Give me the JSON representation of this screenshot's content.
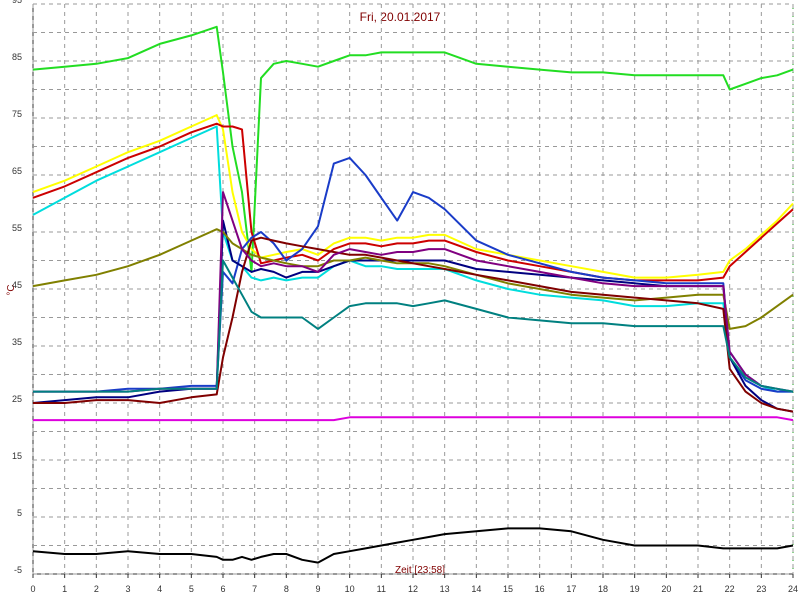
{
  "chart_data": {
    "type": "line",
    "title": "Fri, 20.01.2017",
    "x_label": "Zeit [23:58]",
    "y_label": "°C",
    "xlim": [
      0,
      24
    ],
    "ylim": [
      -5,
      95
    ],
    "xticks": [
      0,
      1,
      2,
      3,
      4,
      5,
      6,
      7,
      8,
      9,
      10,
      11,
      12,
      13,
      14,
      15,
      16,
      17,
      18,
      19,
      20,
      21,
      22,
      23,
      24
    ],
    "yticks": [
      -5,
      5,
      15,
      25,
      35,
      45,
      55,
      65,
      75,
      85,
      95
    ],
    "grid": true,
    "x": [
      0,
      1,
      2,
      3,
      4,
      5,
      5.8,
      6,
      6.3,
      6.6,
      6.9,
      7.2,
      7.6,
      8,
      8.5,
      9,
      9.5,
      10,
      10.5,
      11,
      11.5,
      12,
      12.5,
      13,
      14,
      15,
      16,
      17,
      18,
      19,
      20,
      21,
      21.8,
      22,
      22.5,
      23,
      23.5,
      24
    ],
    "series": [
      {
        "color": "#22dd22",
        "values": [
          83.5,
          84,
          84.5,
          85.5,
          88,
          89.5,
          91,
          83,
          70,
          62,
          48,
          82,
          84.5,
          85,
          84.5,
          84,
          85,
          86,
          86,
          86.5,
          86.5,
          86.5,
          86.5,
          86.5,
          84.5,
          84,
          83.5,
          83,
          83,
          82.5,
          82.5,
          82.5,
          82.5,
          80,
          81,
          82,
          82.5,
          83.5
        ]
      },
      {
        "color": "#ffff00",
        "values": [
          62,
          64,
          66.5,
          69,
          71,
          73.5,
          75.5,
          73,
          62,
          55,
          52,
          50.5,
          51,
          51.5,
          52,
          51,
          53,
          54,
          54,
          53.5,
          54,
          54,
          54.5,
          54.5,
          52,
          51,
          50,
          49,
          48,
          47,
          47,
          47.5,
          48,
          50,
          52,
          54.5,
          57,
          60
        ]
      },
      {
        "color": "#cc0000",
        "values": [
          61,
          63,
          65.5,
          68,
          70,
          72.5,
          74,
          73.5,
          73.5,
          73,
          55,
          49.5,
          50,
          50.5,
          51,
          50,
          52,
          53,
          53,
          52.5,
          53,
          53,
          53.5,
          53.5,
          51.5,
          50,
          49,
          48,
          47,
          46.5,
          46.5,
          46.5,
          47,
          49,
          51.5,
          54,
          56.5,
          59
        ]
      },
      {
        "color": "#00dddd",
        "values": [
          58,
          61,
          64,
          66.5,
          69,
          71.5,
          73.5,
          55,
          50,
          49,
          47,
          46.5,
          47,
          46.5,
          47,
          47,
          49,
          50,
          49,
          49,
          48.5,
          48.5,
          48.5,
          48.5,
          46.5,
          45,
          44,
          43.5,
          43,
          42,
          42,
          42.5,
          42.5,
          34,
          30,
          28,
          27,
          27
        ]
      },
      {
        "color": "#1a3cc8",
        "values": [
          27,
          27,
          27,
          27.5,
          27.5,
          28,
          28,
          48,
          46,
          52,
          54,
          55,
          53,
          50,
          52,
          56,
          67,
          68,
          65,
          61,
          57,
          62,
          61,
          59,
          53.5,
          51,
          49.5,
          48,
          47,
          46.5,
          46,
          46,
          46,
          33,
          29,
          27.5,
          27,
          27
        ]
      },
      {
        "color": "#000080",
        "values": [
          25,
          25.5,
          26,
          26,
          27,
          27.5,
          27.5,
          57,
          50,
          49,
          48,
          48.5,
          48,
          47,
          48,
          48,
          49,
          50,
          50,
          50,
          50,
          50,
          50,
          50,
          48.5,
          48,
          47.5,
          47,
          46.5,
          46,
          45.5,
          45.5,
          45.5,
          33,
          28,
          25.5,
          24,
          23.5
        ]
      },
      {
        "color": "#808000",
        "values": [
          45.5,
          46.5,
          47.5,
          49,
          51,
          53.5,
          55.5,
          55,
          53,
          52,
          51,
          50.5,
          50,
          49.5,
          49,
          49,
          50,
          50,
          50.5,
          50,
          49.5,
          49.5,
          49.5,
          49,
          47.5,
          46,
          45,
          44,
          43.5,
          43,
          43.5,
          44,
          44,
          38,
          38.5,
          40,
          42,
          44
        ]
      },
      {
        "color": "#800000",
        "values": [
          25,
          25,
          25.5,
          25.5,
          25,
          26,
          26.5,
          33,
          40,
          48,
          53.5,
          54,
          53.5,
          53,
          52.5,
          52,
          51.5,
          51,
          51,
          50.5,
          50,
          49.5,
          49,
          48.5,
          47.5,
          46.5,
          45.5,
          44.5,
          44,
          43.5,
          43,
          42.5,
          41.5,
          31,
          27,
          25,
          24,
          23.5
        ]
      },
      {
        "color": "#800080",
        "values": [
          27,
          27,
          27,
          27,
          27.5,
          27.5,
          27.5,
          62,
          57,
          52,
          50,
          49,
          49.5,
          49,
          49,
          48,
          51,
          52,
          51.5,
          51,
          51.5,
          51.5,
          52,
          52,
          50,
          49,
          48,
          47,
          46,
          45.5,
          45.5,
          45.5,
          45.5,
          34,
          30,
          28,
          27.5,
          27
        ]
      },
      {
        "color": "#008080",
        "values": [
          27,
          27,
          27,
          27,
          27.5,
          27.5,
          27.5,
          50,
          47,
          44,
          41,
          40,
          40,
          40,
          40,
          38,
          40,
          42,
          42.5,
          42.5,
          42.5,
          42,
          42.5,
          43,
          41.5,
          40,
          39.5,
          39,
          39,
          38.5,
          38.5,
          38.5,
          38.5,
          33,
          29.5,
          28,
          27.5,
          27
        ]
      },
      {
        "color": "#dd00dd",
        "values": [
          22,
          22,
          22,
          22,
          22,
          22,
          22,
          22,
          22,
          22,
          22,
          22,
          22,
          22,
          22,
          22,
          22,
          22.5,
          22.5,
          22.5,
          22.5,
          22.5,
          22.5,
          22.5,
          22.5,
          22.5,
          22.5,
          22.5,
          22.5,
          22.5,
          22.5,
          22.5,
          22.5,
          22.5,
          22.5,
          22.5,
          22.5,
          22
        ]
      },
      {
        "color": "#000000",
        "values": [
          -1,
          -1.5,
          -1.5,
          -1,
          -1.5,
          -1.5,
          -2,
          -2.5,
          -2.5,
          -2,
          -2.5,
          -2,
          -1.5,
          -1.5,
          -2.5,
          -3,
          -1.5,
          -1,
          -0.5,
          0,
          0.5,
          1,
          1.5,
          2,
          2.5,
          3,
          3,
          2.5,
          1,
          0,
          0,
          0,
          -0.5,
          -0.5,
          -0.5,
          -0.5,
          -0.5,
          0
        ]
      }
    ]
  }
}
